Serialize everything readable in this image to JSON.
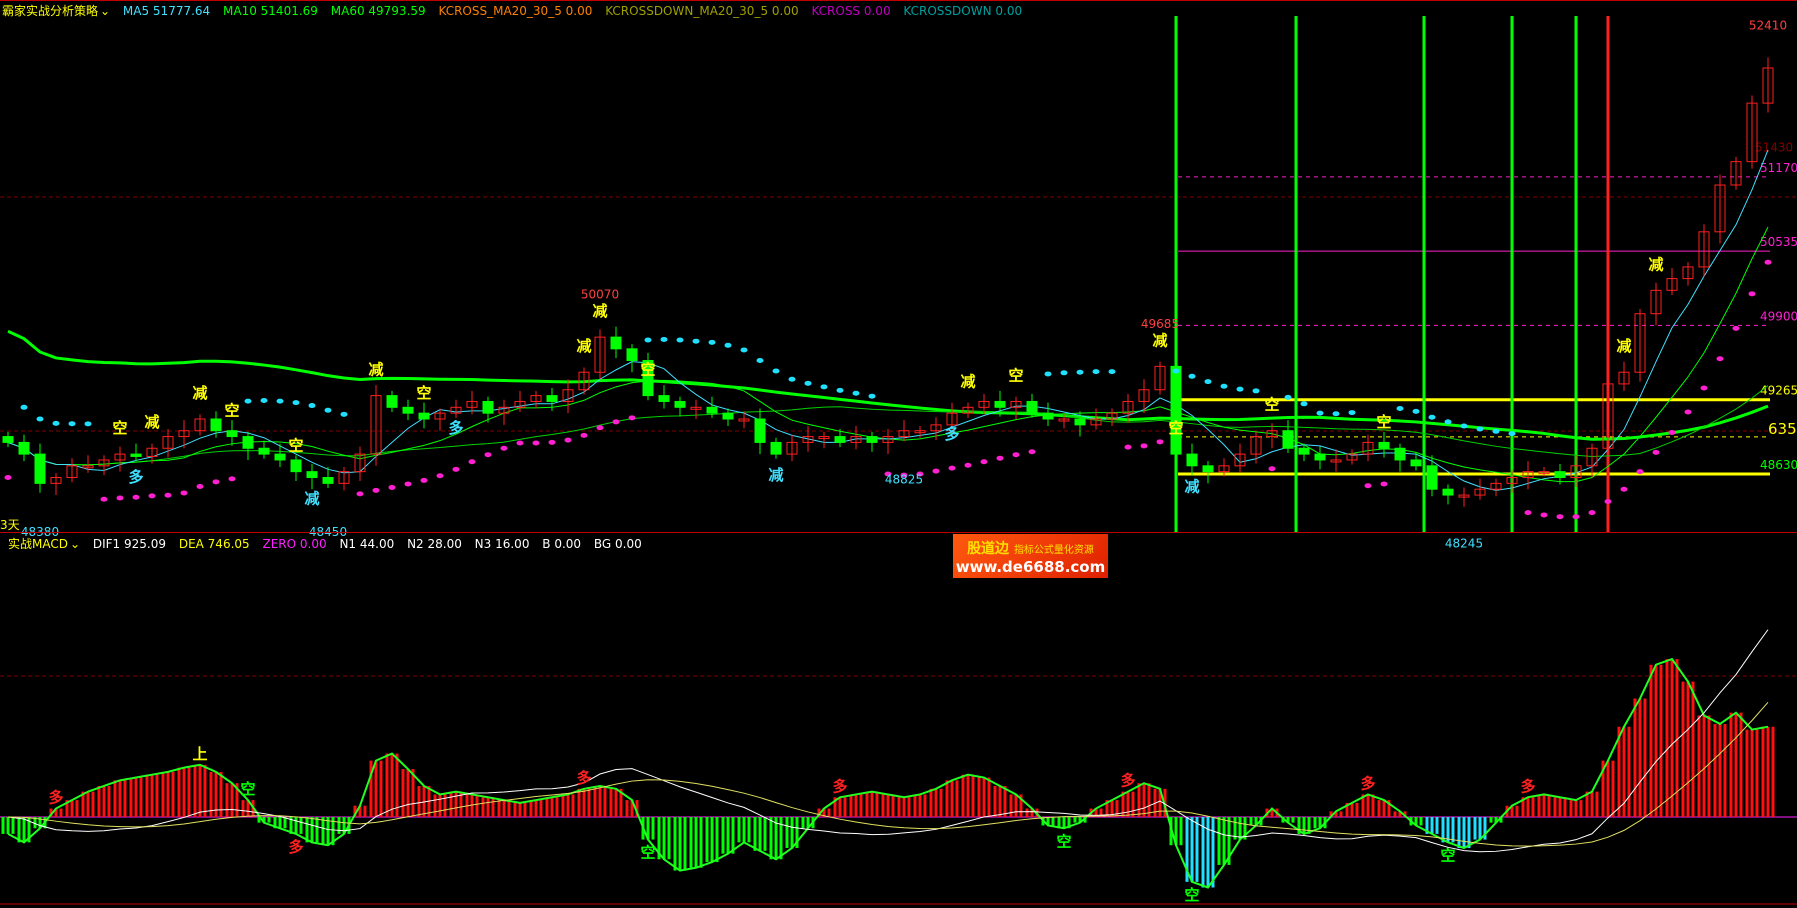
{
  "header": {
    "indicator": "霸家实战分析策略",
    "ma5": "MA5 51777.64",
    "ma10": "MA10 51401.69",
    "ma60": "MA60 49793.59",
    "kcross_ma": "KCROSS_MA20_30_5 0.00",
    "kcrossdown_ma": "KCROSSDOWN_MA20_30_5 0.00",
    "kcross": "KCROSS 0.00",
    "kcrossdown": "KCROSSDOWN 0.00"
  },
  "period_label": "3天",
  "macd_legend": {
    "name": "实战MACD",
    "dif": "DIF1 925.09",
    "dea": "DEA 746.05",
    "zero": "ZERO 0.00",
    "n1": "N1 44.00",
    "n2": "N2 28.00",
    "n3": "N3 16.00",
    "b": "B 0.00",
    "bg": "BG 0.00"
  },
  "watermark": {
    "brand": "股道边",
    "tagline": "指标公式量化资源",
    "url": "www.de6688.com"
  },
  "colors": {
    "up": "#ff2020",
    "down": "#00ff00",
    "ma5": "#40e0ff",
    "ma10": "#00e000",
    "sar_up": "#ff20d0",
    "sar_down": "#20e0ff",
    "level_yellow": "#ffff00",
    "level_magenta": "#ff20d0"
  },
  "chart_data": {
    "type": "candlestick",
    "price_labels": [
      {
        "i": 2,
        "text": "48380"
      },
      {
        "i": 20,
        "text": "48450"
      },
      {
        "i": 37,
        "text": "50070"
      },
      {
        "i": 56,
        "text": "48825"
      },
      {
        "i": 72,
        "text": "49685"
      },
      {
        "i": 91,
        "text": "48245"
      },
      {
        "i": 110,
        "text": "52410"
      }
    ],
    "closes": [
      48900,
      48800,
      48550,
      48600,
      48700,
      48700,
      48750,
      48800,
      48780,
      48850,
      48950,
      49000,
      49100,
      49000,
      48950,
      48850,
      48800,
      48750,
      48650,
      48600,
      48550,
      48650,
      48800,
      49300,
      49200,
      49150,
      49100,
      49150,
      49200,
      49250,
      49150,
      49200,
      49250,
      49300,
      49250,
      49350,
      49500,
      49800,
      49700,
      49600,
      49300,
      49250,
      49200,
      49200,
      49150,
      49100,
      49100,
      48900,
      48800,
      48900,
      48950,
      48950,
      48900,
      48950,
      48900,
      48950,
      49000,
      49000,
      49050,
      49150,
      49200,
      49250,
      49200,
      49250,
      49150,
      49100,
      49100,
      49050,
      49100,
      49150,
      49250,
      49350,
      49550,
      48800,
      48700,
      48650,
      48700,
      48800,
      48950,
      49000,
      48850,
      48800,
      48750,
      48750,
      48800,
      48900,
      48850,
      48750,
      48700,
      48500,
      48450,
      48450,
      48500,
      48550,
      48600,
      48650,
      48650,
      48600,
      48700,
      48850,
      49400,
      49500,
      50000,
      50200,
      50300,
      50400,
      50700,
      51100,
      51300,
      51800,
      52100
    ],
    "levels": [
      {
        "value": 51170,
        "text": "51170",
        "style": "dashed",
        "color": "#ff20d0"
      },
      {
        "value": 50535,
        "text": "50535",
        "style": "solid",
        "color": "#ff20d0"
      },
      {
        "value": 49900,
        "text": "49900",
        "style": "dashed",
        "color": "#ff20d0"
      },
      {
        "value": 49265,
        "text": "49265",
        "style": "thick",
        "color": "#ffff00"
      },
      {
        "value": 48630,
        "text": "48630",
        "style": "thick",
        "color": "#ffff00",
        "label_color": "#00ff00"
      }
    ],
    "range_label": "635",
    "last_close_label": "51430",
    "vertical_markers": [
      {
        "i": 73,
        "color": "#00ff00"
      },
      {
        "i": 80.5,
        "color": "#00ff00"
      },
      {
        "i": 88.5,
        "color": "#00ff00"
      },
      {
        "i": 94,
        "color": "#00ff00"
      },
      {
        "i": 98,
        "color": "#00ff00"
      },
      {
        "i": 100,
        "color": "#ff2020"
      }
    ],
    "signals": [
      {
        "i": 7,
        "text": "空",
        "color": "#ffff00",
        "pos": "above"
      },
      {
        "i": 8,
        "text": "多",
        "color": "#40e0ff",
        "pos": "below"
      },
      {
        "i": 9,
        "text": "减",
        "color": "#ffff00",
        "pos": "above"
      },
      {
        "i": 12,
        "text": "减",
        "color": "#ffff00",
        "pos": "above"
      },
      {
        "i": 14,
        "text": "空",
        "color": "#ffff00",
        "pos": "above"
      },
      {
        "i": 18,
        "text": "空",
        "color": "#ffff00",
        "pos": "above"
      },
      {
        "i": 19,
        "text": "减",
        "color": "#40e0ff",
        "pos": "below"
      },
      {
        "i": 23,
        "text": "减",
        "color": "#ffff00",
        "pos": "above"
      },
      {
        "i": 26,
        "text": "空",
        "color": "#ffff00",
        "pos": "above"
      },
      {
        "i": 28,
        "text": "多",
        "color": "#40e0ff",
        "pos": "below"
      },
      {
        "i": 36,
        "text": "减",
        "color": "#ffff00",
        "pos": "above"
      },
      {
        "i": 37,
        "text": "减",
        "color": "#ffff00",
        "pos": "above"
      },
      {
        "i": 40,
        "text": "空",
        "color": "#ffff00",
        "pos": "above"
      },
      {
        "i": 48,
        "text": "减",
        "color": "#40e0ff",
        "pos": "below"
      },
      {
        "i": 59,
        "text": "多",
        "color": "#40e0ff",
        "pos": "below"
      },
      {
        "i": 60,
        "text": "减",
        "color": "#ffff00",
        "pos": "above"
      },
      {
        "i": 63,
        "text": "空",
        "color": "#ffff00",
        "pos": "above"
      },
      {
        "i": 72,
        "text": "减",
        "color": "#ffff00",
        "pos": "above"
      },
      {
        "i": 73,
        "text": "空",
        "color": "#ffff00",
        "pos": "above"
      },
      {
        "i": 74,
        "text": "减",
        "color": "#40e0ff",
        "pos": "below"
      },
      {
        "i": 79,
        "text": "空",
        "color": "#ffff00",
        "pos": "above"
      },
      {
        "i": 86,
        "text": "空",
        "color": "#ffff00",
        "pos": "above"
      },
      {
        "i": 101,
        "text": "减",
        "color": "#ffff00",
        "pos": "above"
      },
      {
        "i": 103,
        "text": "减",
        "color": "#ffff00",
        "pos": "above"
      }
    ],
    "macd_hist": [
      -60,
      -90,
      -40,
      30,
      60,
      90,
      110,
      130,
      140,
      150,
      160,
      175,
      185,
      160,
      120,
      60,
      -20,
      -40,
      -60,
      -90,
      -100,
      -60,
      40,
      200,
      225,
      170,
      110,
      80,
      90,
      80,
      70,
      60,
      50,
      60,
      70,
      80,
      100,
      110,
      100,
      60,
      -80,
      -150,
      -190,
      -180,
      -160,
      -130,
      -90,
      -120,
      -150,
      -110,
      -40,
      30,
      70,
      80,
      90,
      80,
      70,
      80,
      100,
      130,
      150,
      140,
      110,
      80,
      30,
      -30,
      -40,
      -20,
      30,
      60,
      90,
      120,
      100,
      -100,
      -230,
      -250,
      -170,
      -80,
      -30,
      30,
      -20,
      -60,
      -40,
      20,
      50,
      80,
      60,
      20,
      -30,
      -60,
      -90,
      -110,
      -80,
      -20,
      40,
      70,
      80,
      70,
      60,
      90,
      200,
      320,
      420,
      540,
      560,
      480,
      360,
      330,
      370,
      310,
      320
    ],
    "macd_signals": [
      {
        "i": 3,
        "text": "多",
        "color": "#ff2020"
      },
      {
        "i": 12,
        "text": "上",
        "color": "#ffff00"
      },
      {
        "i": 15,
        "text": "空",
        "color": "#00ff00"
      },
      {
        "i": 18,
        "text": "多",
        "color": "#ff2020"
      },
      {
        "i": 36,
        "text": "多",
        "color": "#ff2020"
      },
      {
        "i": 40,
        "text": "空",
        "color": "#00ff00"
      },
      {
        "i": 52,
        "text": "多",
        "color": "#ff2020"
      },
      {
        "i": 66,
        "text": "空",
        "color": "#00ff00"
      },
      {
        "i": 70,
        "text": "多",
        "color": "#ff2020"
      },
      {
        "i": 74,
        "text": "空",
        "color": "#00ff00"
      },
      {
        "i": 85,
        "text": "多",
        "color": "#ff2020"
      },
      {
        "i": 90,
        "text": "空",
        "color": "#00ff00"
      },
      {
        "i": 95,
        "text": "多",
        "color": "#ff2020"
      }
    ]
  }
}
